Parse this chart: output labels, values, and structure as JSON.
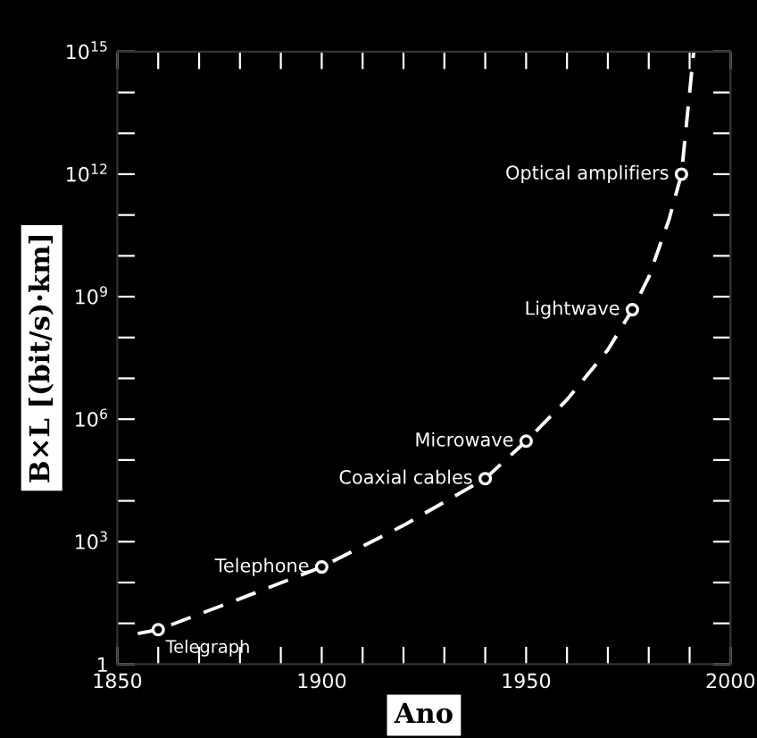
{
  "chart_data": {
    "type": "line",
    "xlabel": "Ano",
    "ylabel": "B×L [(bit/s)·km]",
    "series": [
      {
        "color": "#ffffff",
        "line_style": "dashed",
        "marker": "none",
        "x": [
          1855,
          1860,
          1880,
          1900,
          1920,
          1940,
          1950,
          1960,
          1970,
          1976,
          1980,
          1985,
          1988,
          1991
        ],
        "values": [
          5.6,
          7,
          40,
          240,
          2500,
          35000,
          290000,
          3000000,
          50000000,
          480000000,
          3000000000,
          80000000000,
          1000000000000,
          1000000000000000
        ]
      },
      {
        "type": "scatter",
        "color": "#ffffff",
        "marker": "circle",
        "x": [
          1860,
          1900,
          1940,
          1950,
          1976,
          1988
        ],
        "values": [
          7,
          240,
          35000,
          290000,
          480000000,
          1000000000000
        ]
      }
    ],
    "annotations": [
      {
        "text": "Telegraph",
        "x": 1860,
        "y": 7
      },
      {
        "text": "Telephone",
        "x": 1900,
        "y": 240
      },
      {
        "text": "Coaxial cables",
        "x": 1940,
        "y": 35000
      },
      {
        "text": "Microwave",
        "x": 1950,
        "y": 290000
      },
      {
        "text": "Lightwave",
        "x": 1976,
        "y": 480000000
      },
      {
        "text": "Optical amplifiers",
        "x": 1988,
        "y": 1000000000000
      }
    ],
    "log": "y",
    "grid": false,
    "legend": false,
    "xlim": [
      1850,
      2000
    ],
    "ylim": [
      1,
      1000000000000000
    ],
    "xticks": [
      1850,
      {
        "value": 1860,
        "label": null
      },
      {
        "value": 1870,
        "label": null
      },
      {
        "value": 1880,
        "label": null
      },
      {
        "value": 1890,
        "label": null
      },
      1900,
      {
        "value": 1910,
        "label": null
      },
      {
        "value": 1920,
        "label": null
      },
      {
        "value": 1930,
        "label": null
      },
      {
        "value": 1940,
        "label": null
      },
      1950,
      {
        "value": 1960,
        "label": null
      },
      {
        "value": 1970,
        "label": null
      },
      {
        "value": 1980,
        "label": null
      },
      {
        "value": 1990,
        "label": null
      },
      2000
    ],
    "yticks": [
      1,
      {
        "value": 10,
        "label": null
      },
      {
        "value": 100,
        "label": null
      },
      {
        "value": 1000,
        "label": "10$^{3}$"
      },
      {
        "value": 10000,
        "label": null
      },
      {
        "value": 100000,
        "label": null
      },
      {
        "value": 1000000,
        "label": "10$^{6}$"
      },
      {
        "value": 10000000,
        "label": null
      },
      {
        "value": 100000000,
        "label": null
      },
      {
        "value": 1000000000,
        "label": "10$^{9}$"
      },
      {
        "value": 10000000000,
        "label": null
      },
      {
        "value": 100000000000,
        "label": null
      },
      {
        "value": 1000000000000,
        "label": "10$^{12}$"
      },
      {
        "value": 10000000000000,
        "label": null
      },
      {
        "value": 100000000000000,
        "label": null
      },
      {
        "value": 1000000000000000,
        "label": "10$^{15}$"
      }
    ]
  }
}
